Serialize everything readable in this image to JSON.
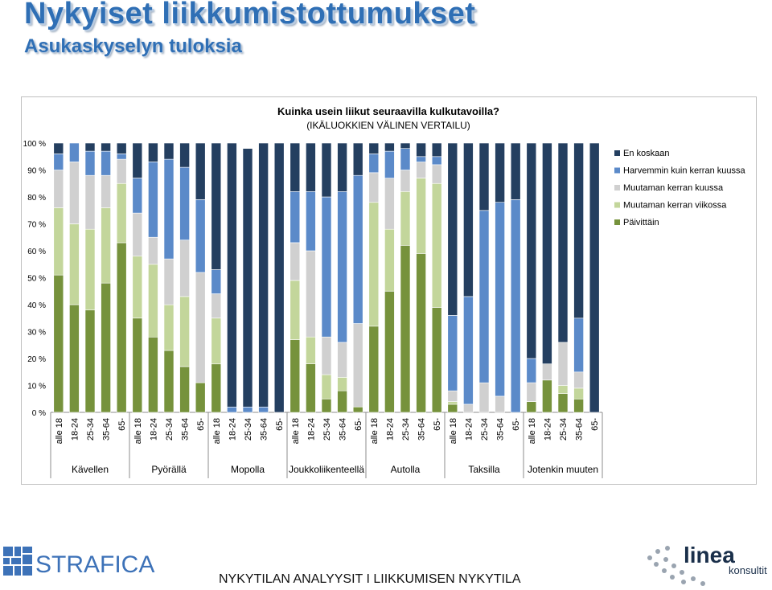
{
  "header": {
    "title": "Nykyiset liikkumistottumukset",
    "subtitle": "Asukaskyselyn tuloksia"
  },
  "footer": {
    "text": "NYKYTILAN ANALYYSIT I LIIKKUMISEN NYKYTILA",
    "logo_left": "STRAFICA",
    "logo_right_main": "linea",
    "logo_right_sub": "konsultit"
  },
  "colors": {
    "title": "#2f6fb5",
    "series": [
      "#76923c",
      "#c3d69b",
      "#d0d0d0",
      "#5b8ac9",
      "#243f60"
    ]
  },
  "chart_data": {
    "type": "stacked-bar-100",
    "title": "Kuinka usein liikut seuraavilla kulkutavoilla?",
    "subtitle": "(IKÄLUOKKIEN VÄLINEN VERTAILU)",
    "xlabel": "",
    "ylabel": "",
    "ylim": [
      0,
      100
    ],
    "yticks": [
      "0 %",
      "10 %",
      "20 %",
      "30 %",
      "40 %",
      "50 %",
      "60 %",
      "70 %",
      "80 %",
      "90 %",
      "100 %"
    ],
    "legend_position": "right",
    "legend_order": [
      "En koskaan",
      "Harvemmin kuin kerran kuussa",
      "Muutaman kerran kuussa",
      "Muutaman kerran viikossa",
      "Päivittäin"
    ],
    "age_groups": [
      "alle 18",
      "18-24",
      "25-34",
      "35-64",
      "65-"
    ],
    "modes": [
      "Kävellen",
      "Pyörällä",
      "Mopolla",
      "Joukkoliikenteellä",
      "Autolla",
      "Taksilla",
      "Jotenkin muuten"
    ],
    "series": [
      {
        "name": "Päivittäin",
        "values": [
          51,
          40,
          38,
          48,
          63,
          35,
          28,
          23,
          17,
          11,
          18,
          0,
          0,
          0,
          0,
          27,
          18,
          5,
          8,
          2,
          32,
          45,
          62,
          59,
          39,
          3,
          0,
          0,
          0,
          0,
          4,
          12,
          7,
          5,
          0
        ]
      },
      {
        "name": "Muutaman kerran viikossa",
        "values": [
          25,
          30,
          30,
          28,
          22,
          23,
          27,
          17,
          26,
          0,
          17,
          0,
          0,
          0,
          0,
          22,
          10,
          9,
          5,
          0,
          46,
          23,
          20,
          28,
          46,
          1,
          0,
          0,
          0,
          0,
          0,
          0,
          3,
          4,
          0
        ]
      },
      {
        "name": "Muutaman kerran kuussa",
        "values": [
          14,
          23,
          20,
          12,
          9,
          16,
          10,
          17,
          21,
          41,
          9,
          0,
          0,
          0,
          0,
          14,
          32,
          14,
          13,
          31,
          11,
          19,
          8,
          6,
          7,
          4,
          3,
          11,
          6,
          0,
          7,
          6,
          16,
          6,
          0
        ]
      },
      {
        "name": "Harvemmin kuin kerran kuussa",
        "values": [
          6,
          7,
          9,
          9,
          2,
          13,
          28,
          37,
          27,
          27,
          9,
          2,
          2,
          2,
          0,
          19,
          22,
          52,
          56,
          55,
          7,
          10,
          8,
          2,
          3,
          28,
          40,
          64,
          72,
          79,
          9,
          0,
          0,
          20,
          0
        ]
      },
      {
        "name": "En koskaan",
        "values": [
          4,
          0,
          3,
          3,
          4,
          13,
          7,
          6,
          9,
          21,
          47,
          98,
          96,
          98,
          100,
          18,
          18,
          20,
          18,
          12,
          4,
          3,
          2,
          5,
          5,
          64,
          57,
          25,
          22,
          21,
          80,
          82,
          74,
          65,
          100
        ]
      }
    ]
  }
}
